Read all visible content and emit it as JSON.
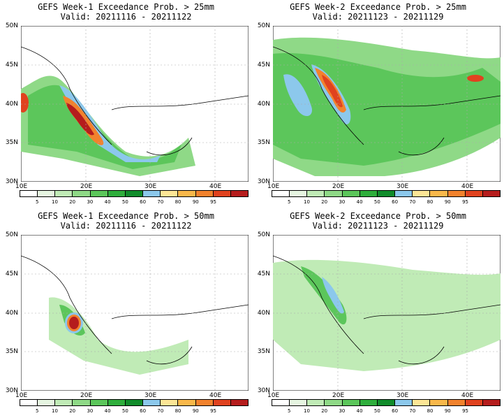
{
  "panels": [
    {
      "title": "GEFS Week-1 Exceedance Prob. > 25mm",
      "valid": "Valid: 20211116 - 20211122"
    },
    {
      "title": "GEFS Week-2 Exceedance Prob. > 25mm",
      "valid": "Valid: 20211123 - 20211129"
    },
    {
      "title": "GEFS Week-1 Exceedance Prob. > 50mm",
      "valid": "Valid: 20211116 - 20211122"
    },
    {
      "title": "GEFS Week-2 Exceedance Prob. > 50mm",
      "valid": "Valid: 20211123 - 20211129"
    }
  ],
  "lat_labels": [
    "50N",
    "45N",
    "40N",
    "35N",
    "30N"
  ],
  "lon_labels": [
    "10E",
    "20E",
    "30E",
    "40E"
  ],
  "colorbar": {
    "labels": [
      "5",
      "10",
      "20",
      "30",
      "40",
      "50",
      "60",
      "70",
      "80",
      "90",
      "95"
    ],
    "colors": [
      "#ffffff",
      "#e6f5e1",
      "#c0ebb6",
      "#8fd987",
      "#5cc65b",
      "#2fae3c",
      "#118c2b",
      "#8cc8ec",
      "#fde696",
      "#f9b84b",
      "#f2822d",
      "#e0421f",
      "#b51d1d"
    ]
  },
  "colors": {
    "land_outline": "#000000",
    "grid": "#aaaaaa"
  }
}
